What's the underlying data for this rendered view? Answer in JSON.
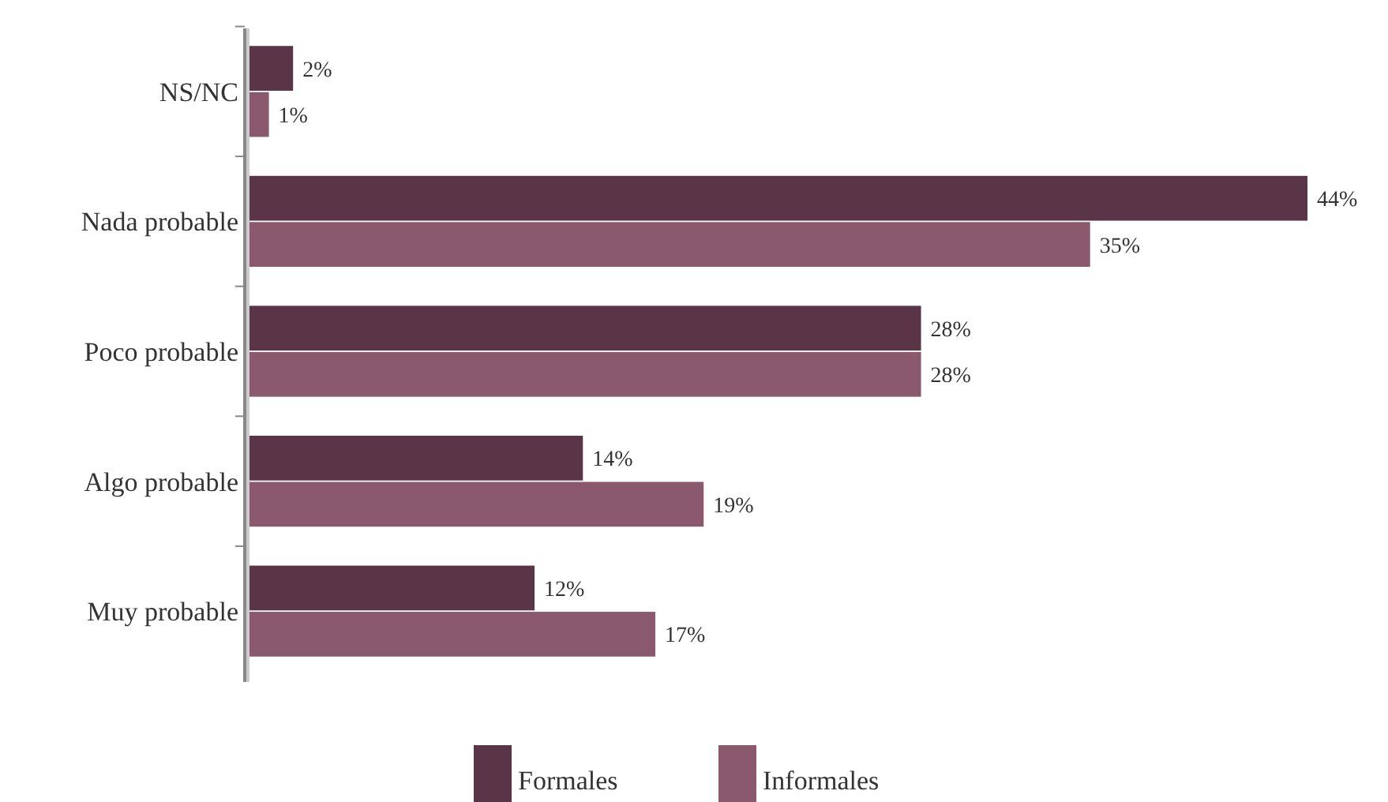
{
  "chart_data": {
    "type": "bar",
    "orientation": "horizontal",
    "categories": [
      "NS/NC",
      "Nada probable",
      "Poco probable",
      "Algo probable",
      "Muy probable"
    ],
    "series": [
      {
        "name": "Formales",
        "color": "#5a3447",
        "values": [
          2,
          44,
          28,
          14,
          12
        ],
        "value_labels": [
          "2%",
          "44%",
          "28%",
          "14%",
          "12%"
        ]
      },
      {
        "name": "Informales",
        "color": "#8b596d",
        "values": [
          1,
          35,
          28,
          19,
          17
        ],
        "value_labels": [
          "1%",
          "35%",
          "28%",
          "19%",
          "17%"
        ]
      }
    ],
    "legend": "bottom"
  }
}
